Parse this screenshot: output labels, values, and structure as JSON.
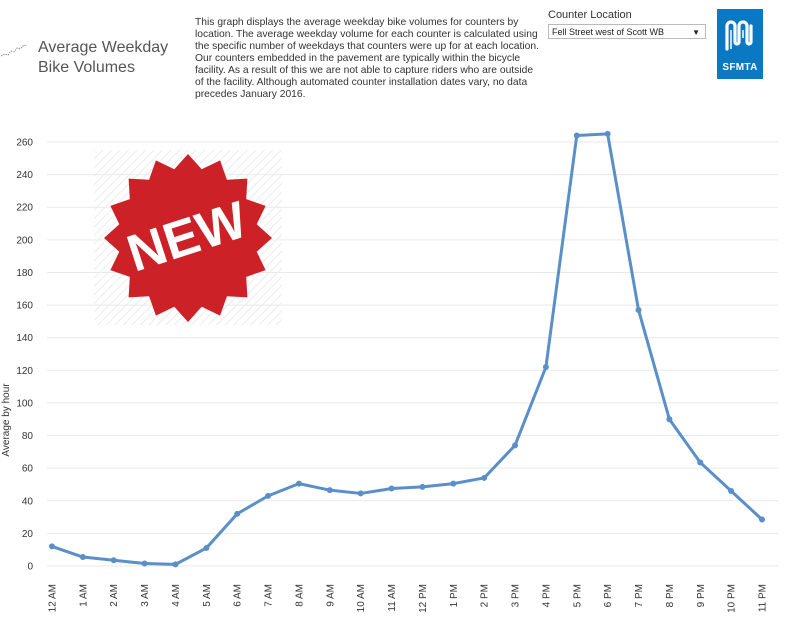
{
  "header": {
    "title_line1": "Average Weekday",
    "title_line2": "Bike Volumes",
    "description": "This graph displays the average weekday bike volumes for counters by location. The average weekday volume for each counter is calculated using the specific number of weekdays that counters were up for at each location. Our counters embedded in the pavement are typically within the bicycle facility. As a result of this we are not able to capture riders who are outside of the facility. Although automated counter installation dates vary, no data precedes January 2016."
  },
  "filter": {
    "label": "Counter Location",
    "selected": "Fell Street west of Scott WB"
  },
  "logo": {
    "text": "SFMTA",
    "color": "#0a78c2"
  },
  "badge": {
    "text": "NEW",
    "color": "#cc2127"
  },
  "chart_data": {
    "type": "line",
    "xlabel": "",
    "ylabel": "Average by hour",
    "ylim": [
      0,
      270
    ],
    "yticks": [
      0,
      20,
      40,
      60,
      80,
      100,
      120,
      140,
      160,
      180,
      200,
      220,
      240,
      260
    ],
    "grid": true,
    "line_color": "#5b8fc9",
    "categories": [
      "12 AM",
      "1 AM",
      "2 AM",
      "3 AM",
      "4 AM",
      "5 AM",
      "6 AM",
      "7 AM",
      "8 AM",
      "9 AM",
      "10 AM",
      "11 AM",
      "12 PM",
      "1 PM",
      "2 PM",
      "3 PM",
      "4 PM",
      "5 PM",
      "6 PM",
      "7 PM",
      "8 PM",
      "9 PM",
      "10 PM",
      "11 PM"
    ],
    "series": [
      {
        "values": [
          12,
          5.5,
          3.5,
          1.5,
          1,
          11,
          32,
          43,
          50.5,
          46.5,
          44.5,
          47.5,
          48.5,
          50.5,
          54,
          74,
          122,
          264,
          265,
          157,
          90,
          63.5,
          46,
          28.5
        ]
      }
    ]
  }
}
